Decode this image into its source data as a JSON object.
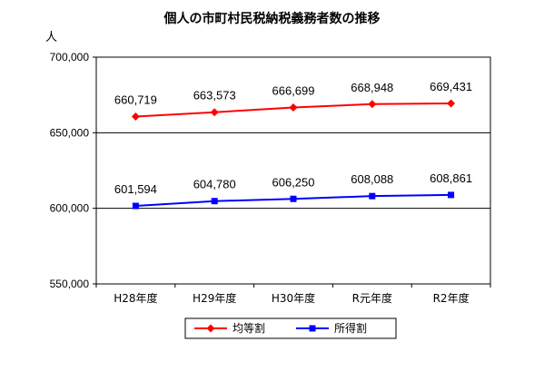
{
  "chart_data": {
    "type": "line",
    "title": "個人の市町村民税納税義務者数の推移",
    "ylabel": "人",
    "categories": [
      "H28年度",
      "H29年度",
      "H30年度",
      "R元年度",
      "R2年度"
    ],
    "ylim": [
      550000,
      700000
    ],
    "yticks": [
      550000,
      600000,
      650000,
      700000
    ],
    "ytick_labels": [
      "550,000",
      "600,000",
      "650,000",
      "700,000"
    ],
    "grid": true,
    "legend_position": "bottom",
    "series": [
      {
        "name": "均等割",
        "color": "#ff0000",
        "marker": "diamond",
        "values": [
          660719,
          663573,
          666699,
          668948,
          669431
        ],
        "labels": [
          "660,719",
          "663,573",
          "666,699",
          "668,948",
          "669,431"
        ]
      },
      {
        "name": "所得割",
        "color": "#0000ff",
        "marker": "square",
        "values": [
          601594,
          604780,
          606250,
          608088,
          608861
        ],
        "labels": [
          "601,594",
          "604,780",
          "606,250",
          "608,088",
          "608,861"
        ]
      }
    ]
  }
}
